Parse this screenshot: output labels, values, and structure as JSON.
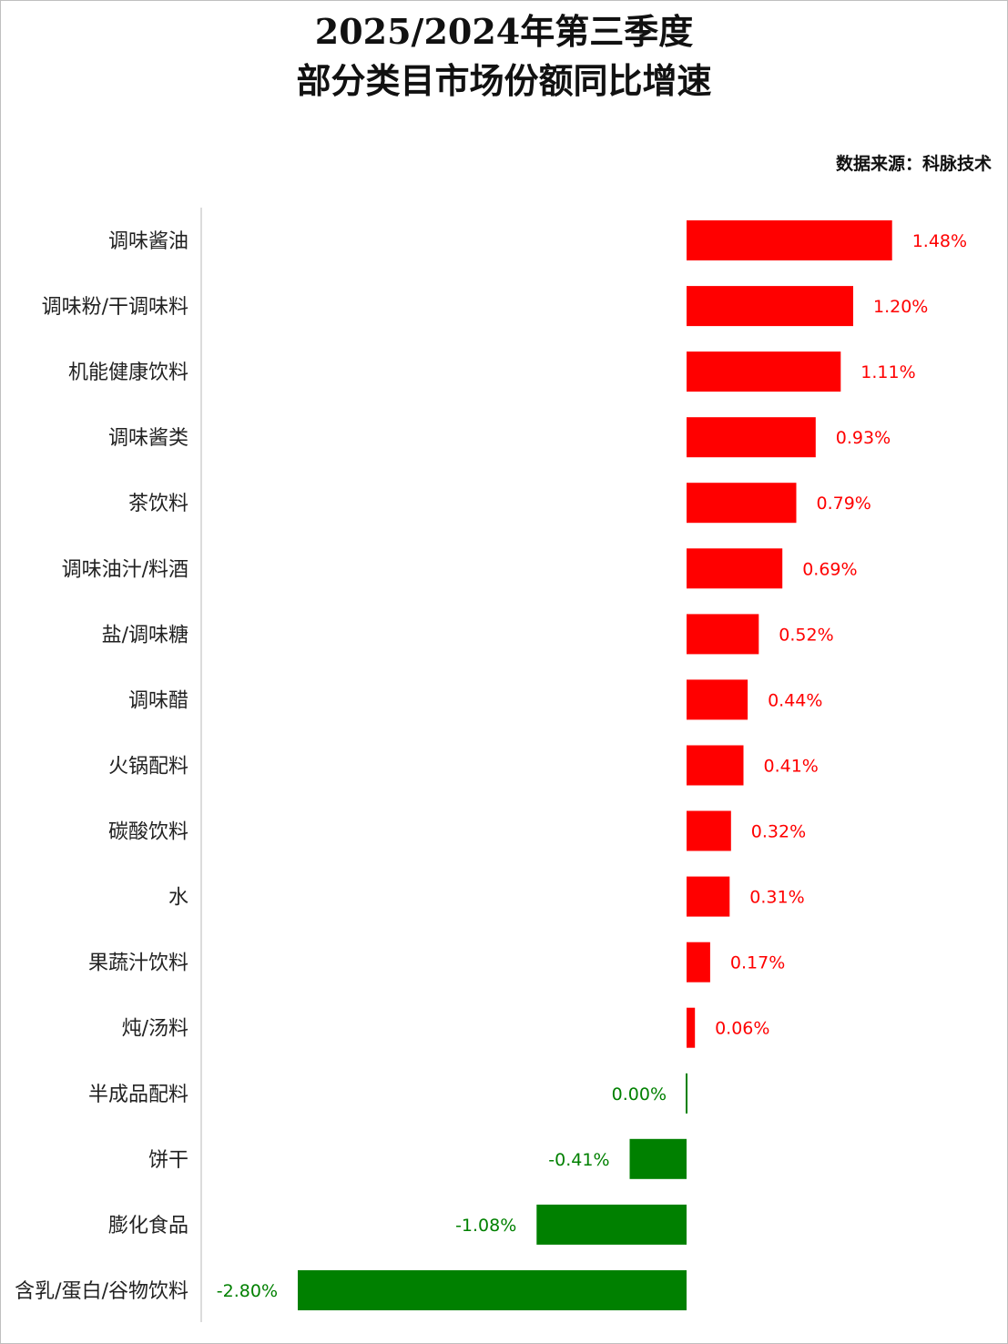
{
  "chart_data": {
    "type": "bar",
    "orientation": "horizontal",
    "title": [
      "2025/2024年第三季度",
      "部分类目市场份额同比增速"
    ],
    "source": "数据来源：科脉技术",
    "categories": [
      "调味酱油",
      "调味粉/干调味料",
      "机能健康饮料",
      "调味酱类",
      "茶饮料",
      "调味油汁/料酒",
      "盐/调味糖",
      "调味醋",
      "火锅配料",
      "碳酸饮料",
      "水",
      "果蔬汁饮料",
      "炖/汤料",
      "半成品配料",
      "饼干",
      "膨化食品",
      "含乳/蛋白/谷物饮料"
    ],
    "values": [
      1.48,
      1.2,
      1.11,
      0.93,
      0.79,
      0.69,
      0.52,
      0.44,
      0.41,
      0.32,
      0.31,
      0.17,
      0.06,
      0.0,
      -0.41,
      -1.08,
      -2.8
    ],
    "value_labels": [
      "1.48%",
      "1.20%",
      "1.11%",
      "0.93%",
      "0.79%",
      "0.69%",
      "0.52%",
      "0.44%",
      "0.41%",
      "0.32%",
      "0.31%",
      "0.17%",
      "0.06%",
      "0.00%",
      "-0.41%",
      "-1.08%",
      "-2.80%"
    ],
    "unit": "%",
    "colors": {
      "positive": "#ff0000",
      "negative": "#008000"
    },
    "grid": false,
    "legend": "none"
  }
}
